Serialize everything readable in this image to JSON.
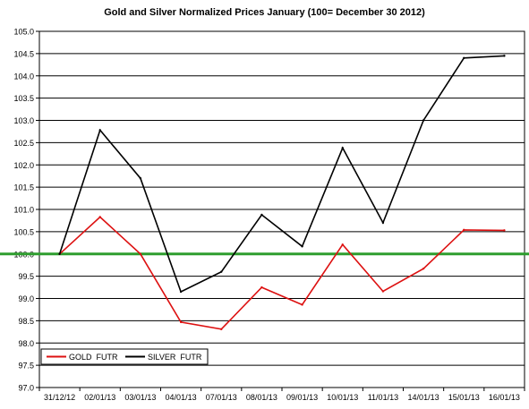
{
  "chart_data": {
    "type": "line",
    "title": "Gold and Silver Normalized Prices January (100= December 30 2012)",
    "xlabel": "",
    "ylabel": "",
    "ylim": [
      97.0,
      105.0
    ],
    "ytick_step": 0.5,
    "ytick_labels": [
      "97.0",
      "97.5",
      "98.0",
      "98.5",
      "99.0",
      "99.5",
      "100.0",
      "100.5",
      "101.0",
      "101.5",
      "102.0",
      "102.5",
      "103.0",
      "103.5",
      "104.0",
      "104.5",
      "105.0"
    ],
    "grid": true,
    "legend_position": "bottom-left",
    "categories": [
      "31/12/12",
      "02/01/13",
      "03/01/13",
      "04/01/13",
      "07/01/13",
      "08/01/13",
      "09/01/13",
      "10/01/13",
      "11/01/13",
      "14/01/13",
      "15/01/13",
      "16/01/13"
    ],
    "series": [
      {
        "name": "GOLD  FUTR",
        "color": "#dd1111",
        "values": [
          100.0,
          100.83,
          100.0,
          98.47,
          98.31,
          99.25,
          98.86,
          100.21,
          99.16,
          99.67,
          100.54,
          100.53
        ]
      },
      {
        "name": "SILVER  FUTR",
        "color": "#000000",
        "values": [
          100.0,
          102.78,
          101.7,
          99.15,
          99.6,
          100.88,
          100.17,
          102.38,
          100.7,
          103.0,
          104.4,
          104.45
        ]
      }
    ],
    "reference_line": {
      "value": 100.0,
      "color": "#2e9e2e"
    }
  }
}
